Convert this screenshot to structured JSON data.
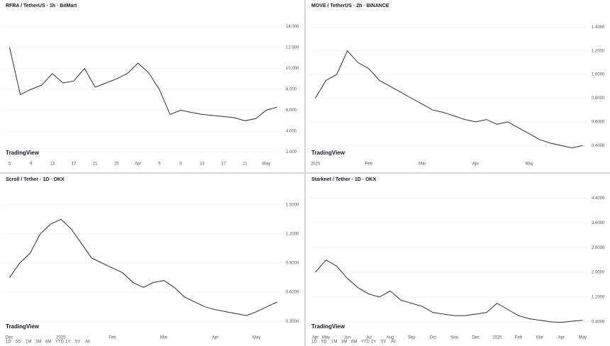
{
  "chart_data": [
    {
      "type": "line",
      "title": "RFRA / TetherUS · 1h · BitMart",
      "color": "#2a2e39",
      "categories": [
        "5",
        null,
        "9",
        null,
        "13",
        null,
        "17",
        null,
        "21",
        null,
        "25",
        null,
        "Apr",
        null,
        "5",
        null,
        "9",
        null,
        "13",
        null,
        "17",
        null,
        "21",
        null,
        "May",
        null
      ],
      "values": [
        12.0,
        7.5,
        8.0,
        8.4,
        9.5,
        8.6,
        8.8,
        10.0,
        8.2,
        8.6,
        9.0,
        9.5,
        10.5,
        9.6,
        8.0,
        5.6,
        6.0,
        5.8,
        5.6,
        5.5,
        5.4,
        5.3,
        5.0,
        5.2,
        6.0,
        6.3
      ],
      "ylim": [
        1.5,
        14.5
      ],
      "yticks": [
        {
          "value": 14,
          "label": "14.000"
        },
        {
          "value": 12,
          "label": "12.000"
        },
        {
          "value": 10,
          "label": "10.000"
        },
        {
          "value": 8,
          "label": "8.000"
        },
        {
          "value": 6,
          "label": "6.000"
        },
        {
          "value": 4,
          "label": "4.000"
        },
        {
          "value": 2,
          "label": "2.000"
        }
      ]
    },
    {
      "type": "line",
      "title": "MOVE / TetherUS · 2h · BINANCE",
      "color": "#2a2e39",
      "categories": [
        "2025",
        null,
        null,
        null,
        null,
        "Feb",
        null,
        null,
        null,
        null,
        "Mar",
        null,
        null,
        null,
        null,
        "Apr",
        null,
        null,
        null,
        null,
        "May",
        null,
        null,
        null,
        null,
        null
      ],
      "values": [
        0.8,
        0.95,
        1.0,
        1.2,
        1.1,
        1.05,
        0.95,
        0.9,
        0.85,
        0.8,
        0.75,
        0.7,
        0.68,
        0.65,
        0.62,
        0.6,
        0.62,
        0.58,
        0.6,
        0.55,
        0.5,
        0.45,
        0.42,
        0.4,
        0.38,
        0.4
      ],
      "ylim": [
        0.3,
        1.45
      ],
      "yticks": [
        {
          "value": 1.4,
          "label": "1.4000"
        },
        {
          "value": 1.2,
          "label": "1.2000"
        },
        {
          "value": 1.0,
          "label": "1.0000"
        },
        {
          "value": 0.8,
          "label": "0.8000"
        },
        {
          "value": 0.6,
          "label": "0.6000"
        },
        {
          "value": 0.4,
          "label": "0.4000"
        }
      ]
    },
    {
      "type": "line",
      "title": "Scroll / Tether · 1D · OKX",
      "color": "#2a2e39",
      "categories": [
        "Dec",
        null,
        null,
        null,
        null,
        "2025",
        null,
        null,
        null,
        null,
        "Feb",
        null,
        null,
        null,
        null,
        "Mar",
        null,
        null,
        null,
        null,
        "Apr",
        null,
        null,
        null,
        "May",
        null,
        null
      ],
      "values": [
        0.75,
        0.9,
        1.0,
        1.2,
        1.3,
        1.35,
        1.25,
        1.1,
        0.95,
        0.9,
        0.85,
        0.8,
        0.7,
        0.65,
        0.7,
        0.72,
        0.65,
        0.55,
        0.5,
        0.45,
        0.42,
        0.4,
        0.38,
        0.36,
        0.4,
        0.45,
        0.5
      ],
      "ylim": [
        0.2,
        1.6
      ],
      "yticks": [
        {
          "value": 1.5,
          "label": "1.5000"
        },
        {
          "value": 1.2,
          "label": "1.2000"
        },
        {
          "value": 0.9,
          "label": "0.9000"
        },
        {
          "value": 0.6,
          "label": "0.6000"
        },
        {
          "value": 0.3,
          "label": "0.3000"
        }
      ]
    },
    {
      "type": "line",
      "title": "Starknet / Tether · 1D · OKX",
      "color": "#2a2e39",
      "categories": [
        "Apr",
        "May",
        null,
        "Jun",
        null,
        "Jul",
        null,
        "Aug",
        null,
        "Sep",
        null,
        "Oct",
        null,
        "Nov",
        null,
        "Dec",
        null,
        "2025",
        null,
        "Feb",
        null,
        "Mar",
        null,
        "Apr",
        null,
        "May"
      ],
      "values": [
        2.0,
        2.4,
        2.2,
        1.8,
        1.5,
        1.3,
        1.2,
        1.4,
        1.1,
        1.0,
        0.9,
        0.7,
        0.65,
        0.6,
        0.6,
        0.65,
        0.7,
        1.0,
        0.8,
        0.6,
        0.5,
        0.45,
        0.4,
        0.38,
        0.42,
        0.45
      ],
      "ylim": [
        0.1,
        4.5
      ],
      "yticks": [
        {
          "value": 4.4,
          "label": "4.4000"
        },
        {
          "value": 3.6,
          "label": "3.6000"
        },
        {
          "value": 2.8,
          "label": "2.8000"
        },
        {
          "value": 2.0,
          "label": "2.0000"
        },
        {
          "value": 1.2,
          "label": "1.2000"
        },
        {
          "value": 0.4,
          "label": "0.4000"
        }
      ]
    }
  ],
  "brand": "TradingView",
  "range_buttons": [
    "1D",
    "5D",
    "1M",
    "3M",
    "6M",
    "YTD",
    "1Y",
    "5Y",
    "All"
  ]
}
